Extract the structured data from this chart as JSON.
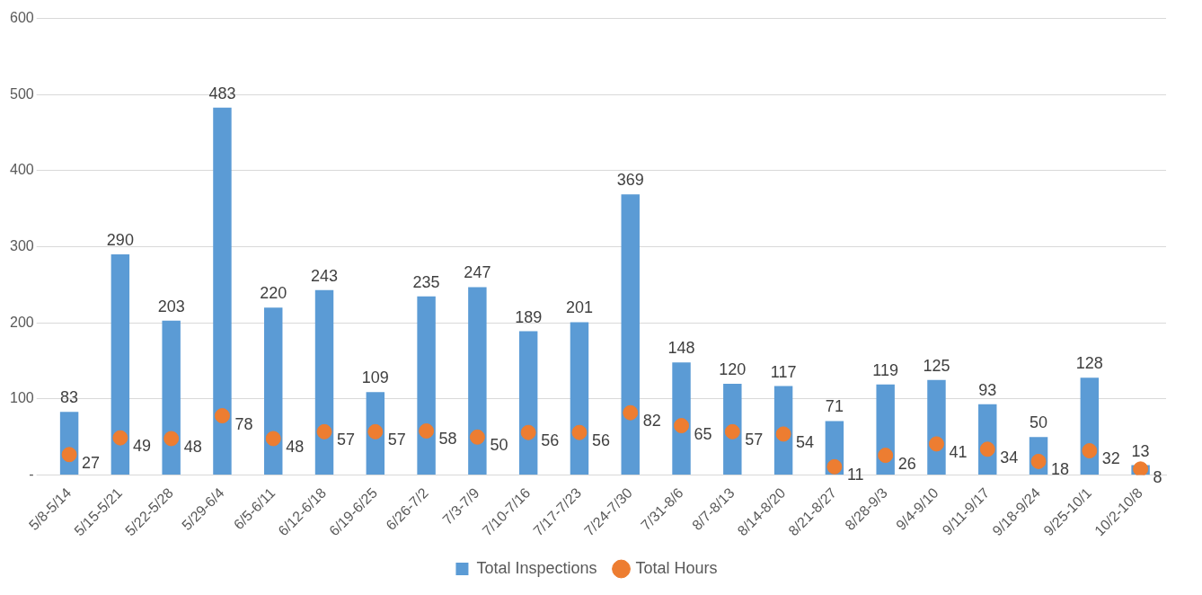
{
  "chart_data": {
    "type": "bar",
    "categories": [
      "5/8-5/14",
      "5/15-5/21",
      "5/22-5/28",
      "5/29-6/4",
      "6/5-6/11",
      "6/12-6/18",
      "6/19-6/25",
      "6/26-7/2",
      "7/3-7/9",
      "7/10-7/16",
      "7/17-7/23",
      "7/24-7/30",
      "7/31-8/6",
      "8/7-8/13",
      "8/14-8/20",
      "8/21-8/27",
      "8/28-9/3",
      "9/4-9/10",
      "9/11-9/17",
      "9/18-9/24",
      "9/25-10/1",
      "10/2-10/8"
    ],
    "series": [
      {
        "name": "Total Inspections",
        "color": "#5b9bd5",
        "values": [
          83,
          290,
          203,
          483,
          220,
          243,
          109,
          235,
          247,
          189,
          201,
          369,
          148,
          120,
          117,
          71,
          119,
          125,
          93,
          50,
          128,
          13
        ]
      },
      {
        "name": "Total Hours",
        "type": "scatter",
        "color": "#ed7d31",
        "marker": "circle",
        "x": [
          "5/8-5/14",
          "5/15-5/21",
          "5/22-5/28",
          "5/29-6/4",
          "6/5-6/11",
          "6/12-6/18",
          "6/19-6/25",
          "6/26-7/2",
          "7/3-7/9",
          "7/10-7/16",
          "7/17-7/23",
          "7/24-7/30",
          "7/31-8/6",
          "8/7-8/13",
          "8/14-8/20",
          "8/21-8/27",
          "8/28-9/3",
          "9/4-9/10",
          "9/11-9/17",
          "9/18-9/24",
          "9/25-10/1",
          "10/2-10/8"
        ],
        "values": [
          27,
          49,
          48,
          78,
          48,
          57,
          57,
          58,
          50,
          56,
          56,
          82,
          65,
          57,
          54,
          11,
          26,
          41,
          34,
          18,
          32,
          8
        ]
      }
    ],
    "ylim": [
      0,
      600
    ],
    "yticks": [
      {
        "value": 0,
        "label": "-"
      },
      100,
      200,
      300,
      400,
      500,
      600
    ],
    "grid": "y",
    "legend": "bottom",
    "data_labels": true
  }
}
